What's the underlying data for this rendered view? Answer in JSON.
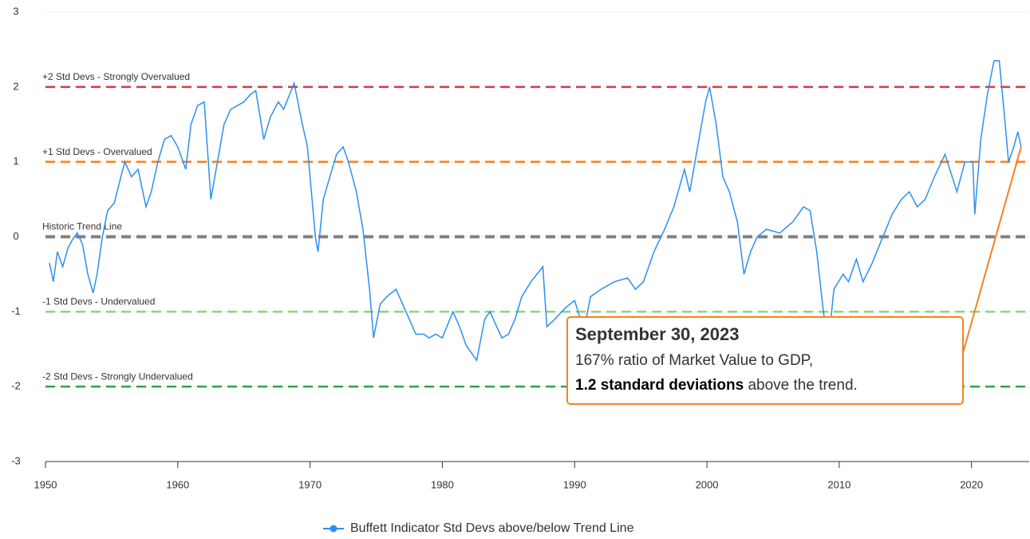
{
  "chart_data": {
    "type": "line",
    "x": [
      1950.3,
      1950.6,
      1950.9,
      1951.3,
      1951.7,
      1952.0,
      1952.4,
      1952.8,
      1953.2,
      1953.6,
      1953.9,
      1954.3,
      1954.7,
      1955.2,
      1955.7,
      1956.0,
      1956.5,
      1957.0,
      1957.6,
      1958.0,
      1958.5,
      1959.0,
      1959.5,
      1960.0,
      1960.6,
      1961.0,
      1961.5,
      1962.0,
      1962.5,
      1962.9,
      1963.5,
      1964.0,
      1964.5,
      1965.0,
      1965.5,
      1965.9,
      1966.5,
      1967.0,
      1967.6,
      1968.0,
      1968.8,
      1969.3,
      1969.8,
      1970.4,
      1970.6,
      1971.0,
      1971.5,
      1972.0,
      1972.5,
      1972.9,
      1973.5,
      1974.0,
      1974.5,
      1974.8,
      1975.3,
      1975.8,
      1976.5,
      1977.0,
      1977.5,
      1978.0,
      1978.6,
      1979.0,
      1979.5,
      1980.0,
      1980.8,
      1981.3,
      1981.8,
      1982.6,
      1983.2,
      1983.6,
      1984.5,
      1985.0,
      1985.5,
      1986.0,
      1986.7,
      1987.6,
      1987.9,
      1988.5,
      1989.3,
      1990.0,
      1990.7,
      1991.2,
      1992.0,
      1993.0,
      1994.0,
      1994.6,
      1995.2,
      1996.0,
      1996.8,
      1997.5,
      1998.3,
      1998.7,
      1999.3,
      1999.9,
      2000.2,
      2000.7,
      2001.2,
      2001.7,
      2002.3,
      2002.8,
      2003.3,
      2003.8,
      2004.5,
      2005.5,
      2006.5,
      2007.3,
      2007.8,
      2008.3,
      2008.8,
      2009.2,
      2009.6,
      2010.3,
      2010.7,
      2011.3,
      2011.8,
      2012.5,
      2013.3,
      2014.0,
      2014.7,
      2015.3,
      2015.9,
      2016.5,
      2017.2,
      2018.0,
      2018.9,
      2019.5,
      2020.1,
      2020.25,
      2020.7,
      2021.2,
      2021.7,
      2022.1,
      2022.5,
      2022.8,
      2023.2,
      2023.5,
      2023.75
    ],
    "series": [
      {
        "name": "Buffett Indicator Std Devs above/below Trend Line",
        "color": "#2d8ff0",
        "values": [
          -0.35,
          -0.6,
          -0.2,
          -0.4,
          -0.15,
          -0.05,
          0.05,
          -0.1,
          -0.5,
          -0.75,
          -0.5,
          0.0,
          0.35,
          0.45,
          0.8,
          1.0,
          0.8,
          0.9,
          0.4,
          0.6,
          1.0,
          1.3,
          1.35,
          1.2,
          0.9,
          1.5,
          1.75,
          1.8,
          0.5,
          0.9,
          1.5,
          1.7,
          1.75,
          1.8,
          1.9,
          1.95,
          1.3,
          1.6,
          1.8,
          1.7,
          2.05,
          1.6,
          1.2,
          0.0,
          -0.2,
          0.5,
          0.8,
          1.1,
          1.2,
          1.0,
          0.6,
          0.1,
          -0.7,
          -1.35,
          -0.9,
          -0.8,
          -0.7,
          -0.9,
          -1.1,
          -1.3,
          -1.3,
          -1.35,
          -1.3,
          -1.35,
          -1.0,
          -1.2,
          -1.45,
          -1.65,
          -1.1,
          -1.0,
          -1.35,
          -1.3,
          -1.1,
          -0.8,
          -0.6,
          -0.4,
          -1.2,
          -1.1,
          -0.95,
          -0.85,
          -1.25,
          -0.8,
          -0.7,
          -0.6,
          -0.55,
          -0.7,
          -0.6,
          -0.2,
          0.1,
          0.4,
          0.9,
          0.6,
          1.2,
          1.8,
          2.0,
          1.5,
          0.8,
          0.6,
          0.2,
          -0.5,
          -0.2,
          0.0,
          0.1,
          0.05,
          0.2,
          0.4,
          0.35,
          -0.2,
          -1.0,
          -1.4,
          -0.7,
          -0.5,
          -0.6,
          -0.3,
          -0.6,
          -0.35,
          0.0,
          0.3,
          0.5,
          0.6,
          0.4,
          0.5,
          0.8,
          1.1,
          0.6,
          1.0,
          1.0,
          0.3,
          1.3,
          1.9,
          2.35,
          2.35,
          1.6,
          1.0,
          1.2,
          1.4,
          1.2
        ]
      }
    ],
    "xlim": [
      1950,
      2024
    ],
    "xticks": [
      1950,
      1960,
      1970,
      1980,
      1990,
      2000,
      2010,
      2020
    ],
    "ylim": [
      -3,
      3
    ],
    "yticks": [
      -3,
      -2,
      -1,
      0,
      1,
      2,
      3
    ],
    "grid": true,
    "reference_lines": [
      {
        "value": 2,
        "label": "+2 Std Devs - Strongly Overvalued",
        "color": "#dc3545"
      },
      {
        "value": 1,
        "label": "+1 Std Devs - Overvalued",
        "color": "#fd7e14"
      },
      {
        "value": 0,
        "label": "Historic Trend Line",
        "color": "#808080"
      },
      {
        "value": -1,
        "label": "-1 Std Devs - Undervalued",
        "color": "#8fd37a"
      },
      {
        "value": -2,
        "label": "-2 Std Devs - Strongly Undervalued",
        "color": "#28a745"
      }
    ],
    "annotation": {
      "x": 2023.75,
      "y": 1.2,
      "title": "September 30, 2023",
      "text": "167% ratio of Market Value to GDP,",
      "emphasis": "1.2 standard deviations",
      "tail": " above the trend.",
      "color": "#f58220"
    },
    "legend": "bottom"
  }
}
